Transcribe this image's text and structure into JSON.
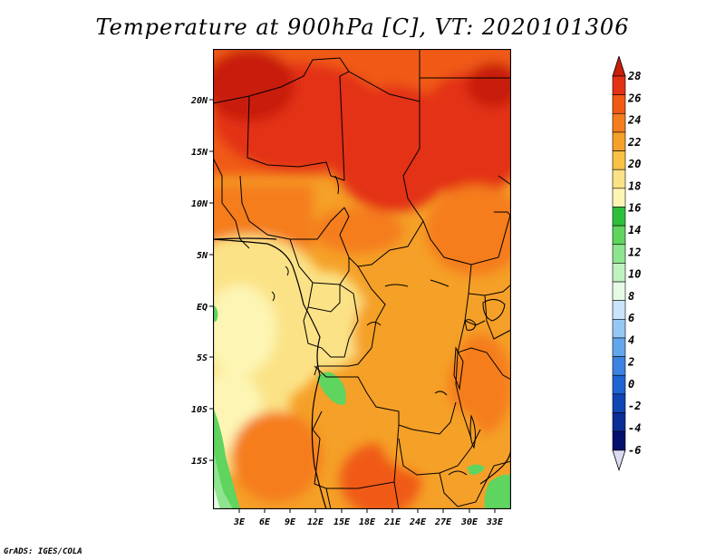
{
  "title": "Temperature at 900hPa [C], VT: 2020101306",
  "credit": "GrADS: IGES/COLA",
  "map": {
    "lon_labels": [
      "3E",
      "6E",
      "9E",
      "12E",
      "15E",
      "18E",
      "21E",
      "24E",
      "27E",
      "30E",
      "33E"
    ],
    "lat_labels": [
      "20N",
      "15N",
      "10N",
      "5N",
      "EQ",
      "5S",
      "10S",
      "15S"
    ]
  },
  "colorbar": {
    "labels": [
      "28",
      "26",
      "24",
      "22",
      "20",
      "18",
      "16",
      "14",
      "12",
      "10",
      "8",
      "6",
      "4",
      "2",
      "0",
      "-2",
      "-4",
      "-6"
    ],
    "colors": [
      "#c81e0a",
      "#e33114",
      "#f05a14",
      "#f57d1e",
      "#f5a028",
      "#f8c246",
      "#fbe286",
      "#fdf5b4",
      "#2ebf3a",
      "#5fd45f",
      "#8fe48f",
      "#c0f2c0",
      "#e6fae6",
      "#c9e4fb",
      "#96c8f5",
      "#64a6ec",
      "#3c82e0",
      "#1e64d2",
      "#0f46b4",
      "#0a2d96",
      "#050f6e",
      "#dcdcf5"
    ]
  }
}
